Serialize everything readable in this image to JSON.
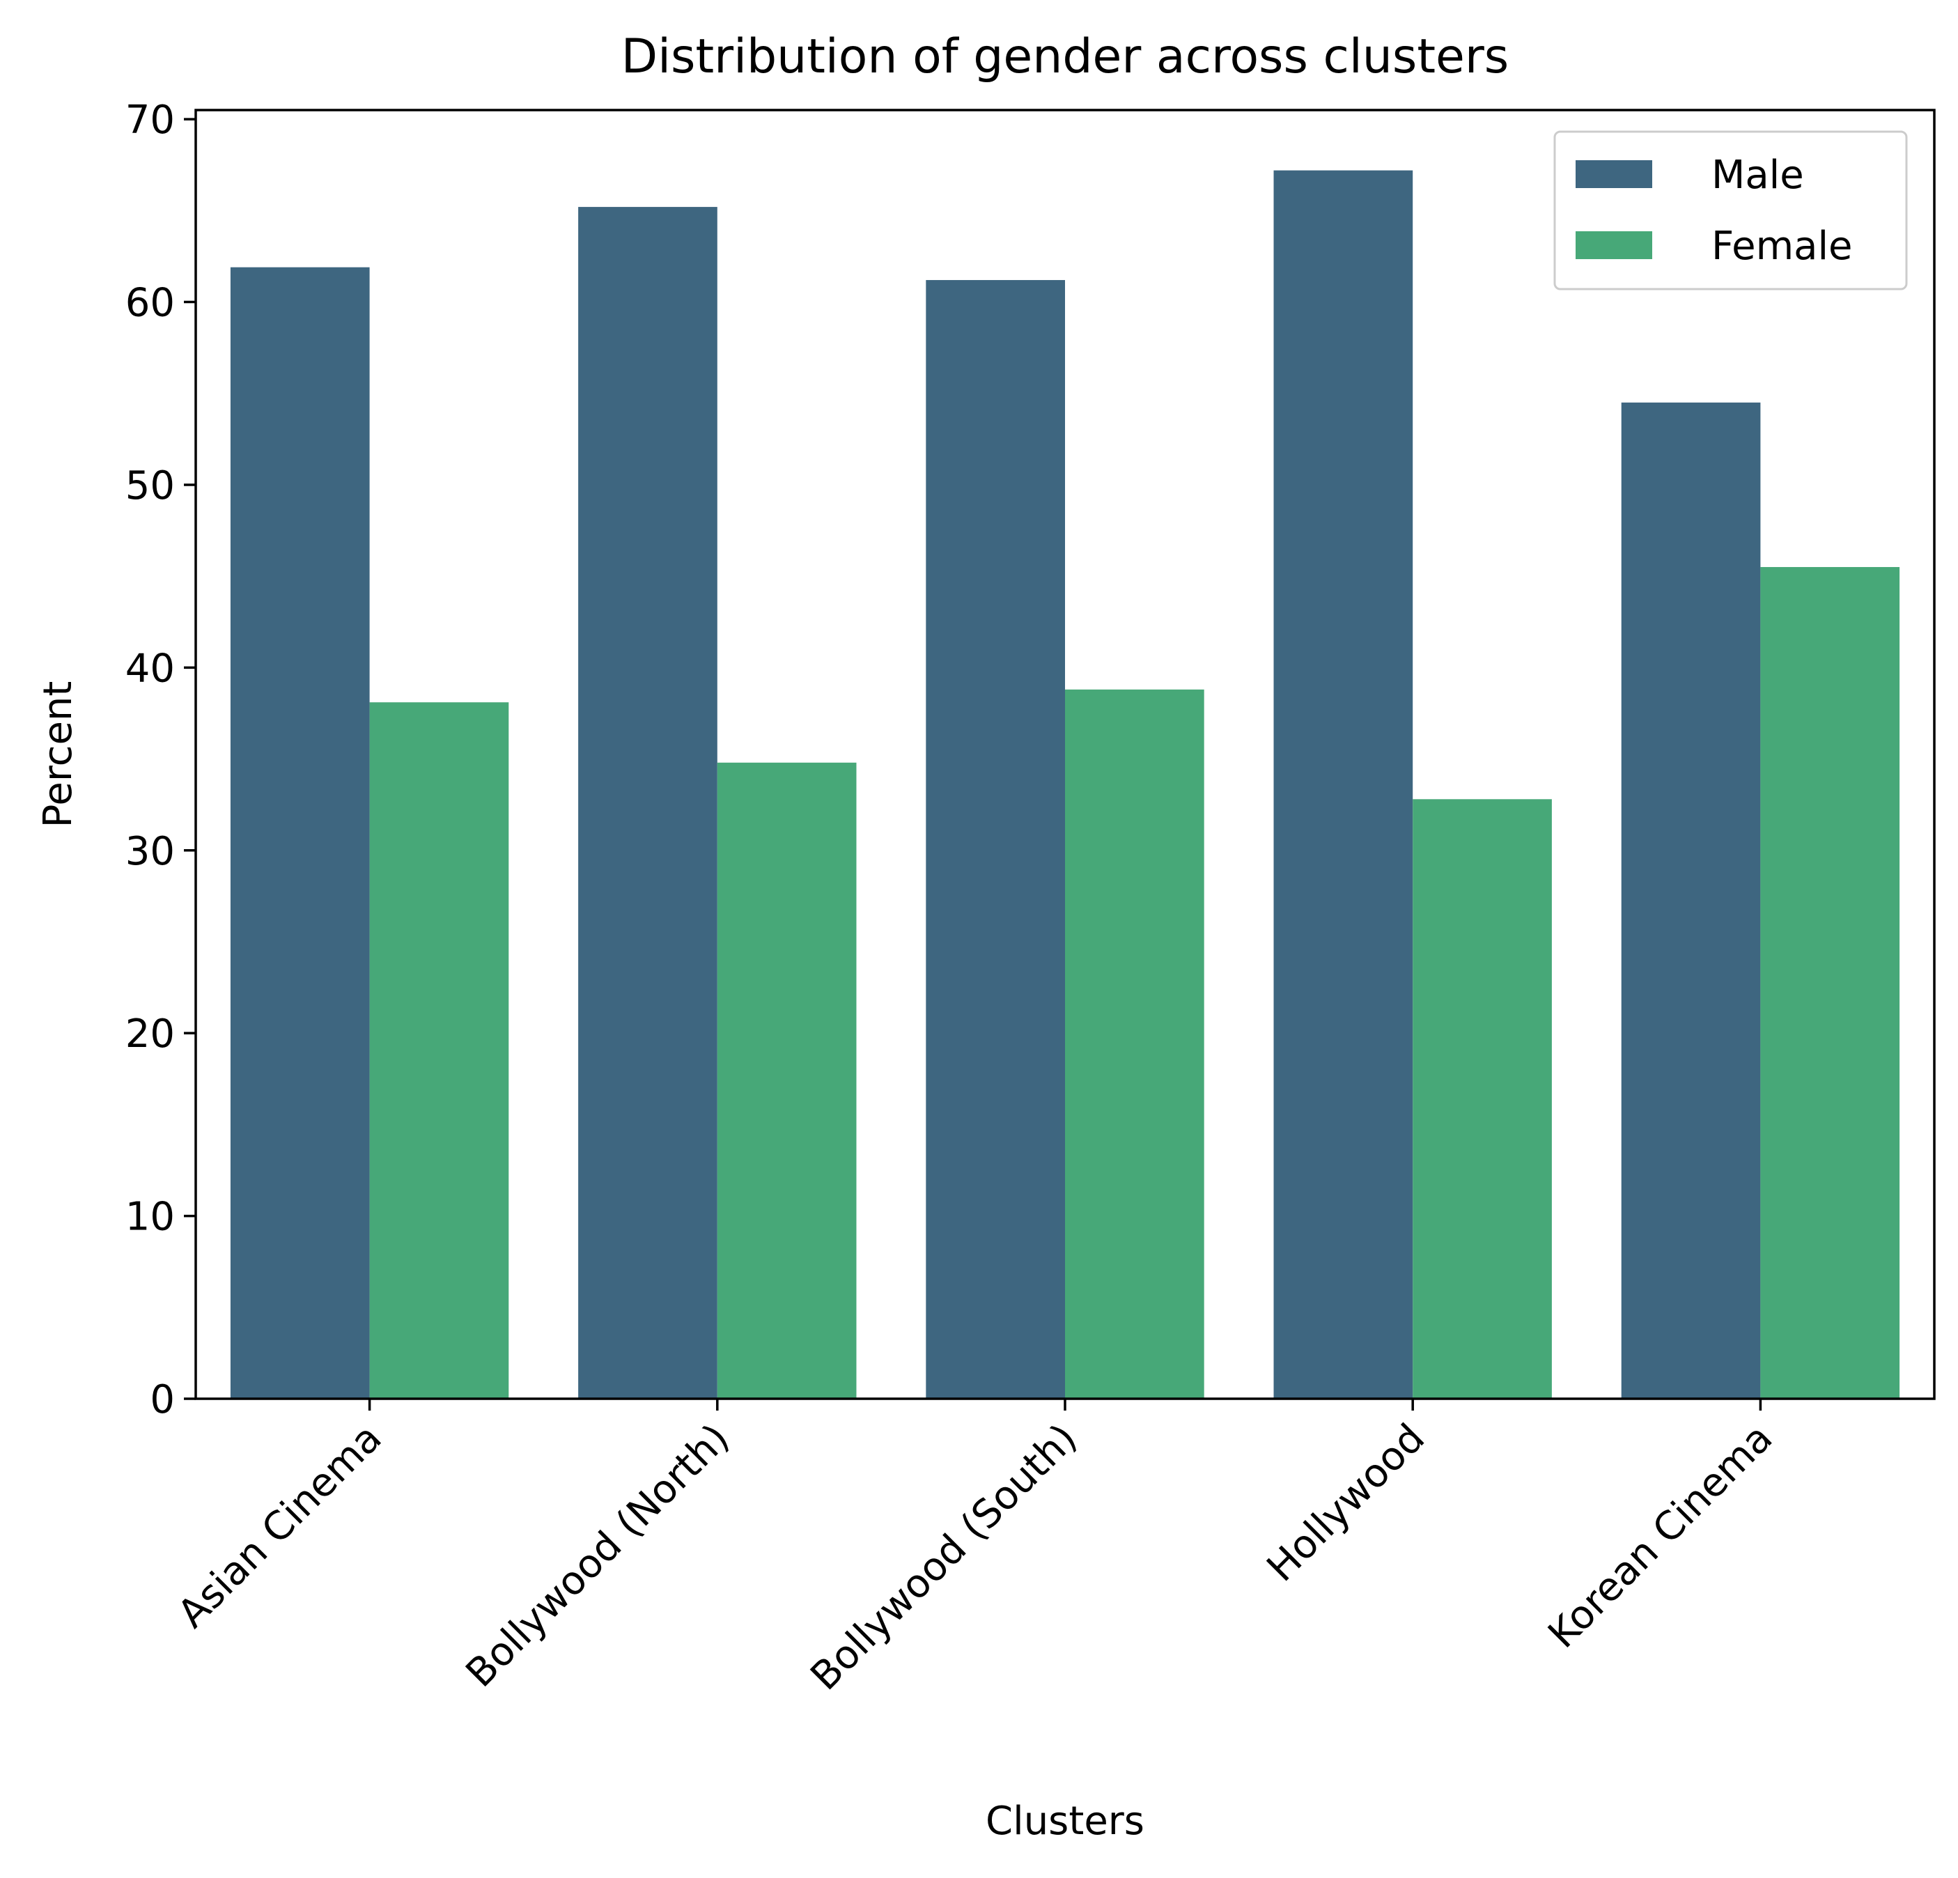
{
  "chart_data": {
    "type": "bar",
    "title": "Distribution of gender across clusters",
    "xlabel": "Clusters",
    "ylabel": "Percent",
    "categories": [
      "Asian Cinema",
      "Bollywood (North)",
      "Bollywood (South)",
      "Hollywood",
      "Korean Cinema"
    ],
    "series": [
      {
        "name": "Male",
        "values": [
          61.9,
          65.2,
          61.2,
          67.2,
          54.5
        ],
        "color": "#3e6680"
      },
      {
        "name": "Female",
        "values": [
          38.1,
          34.8,
          38.8,
          32.8,
          45.5
        ],
        "color": "#47a878"
      }
    ],
    "ylim": [
      0,
      70.5
    ],
    "yticks": [
      "0",
      "10",
      "20",
      "30",
      "40",
      "50",
      "60",
      "70"
    ],
    "legend_position": "top-right",
    "grid": false
  }
}
